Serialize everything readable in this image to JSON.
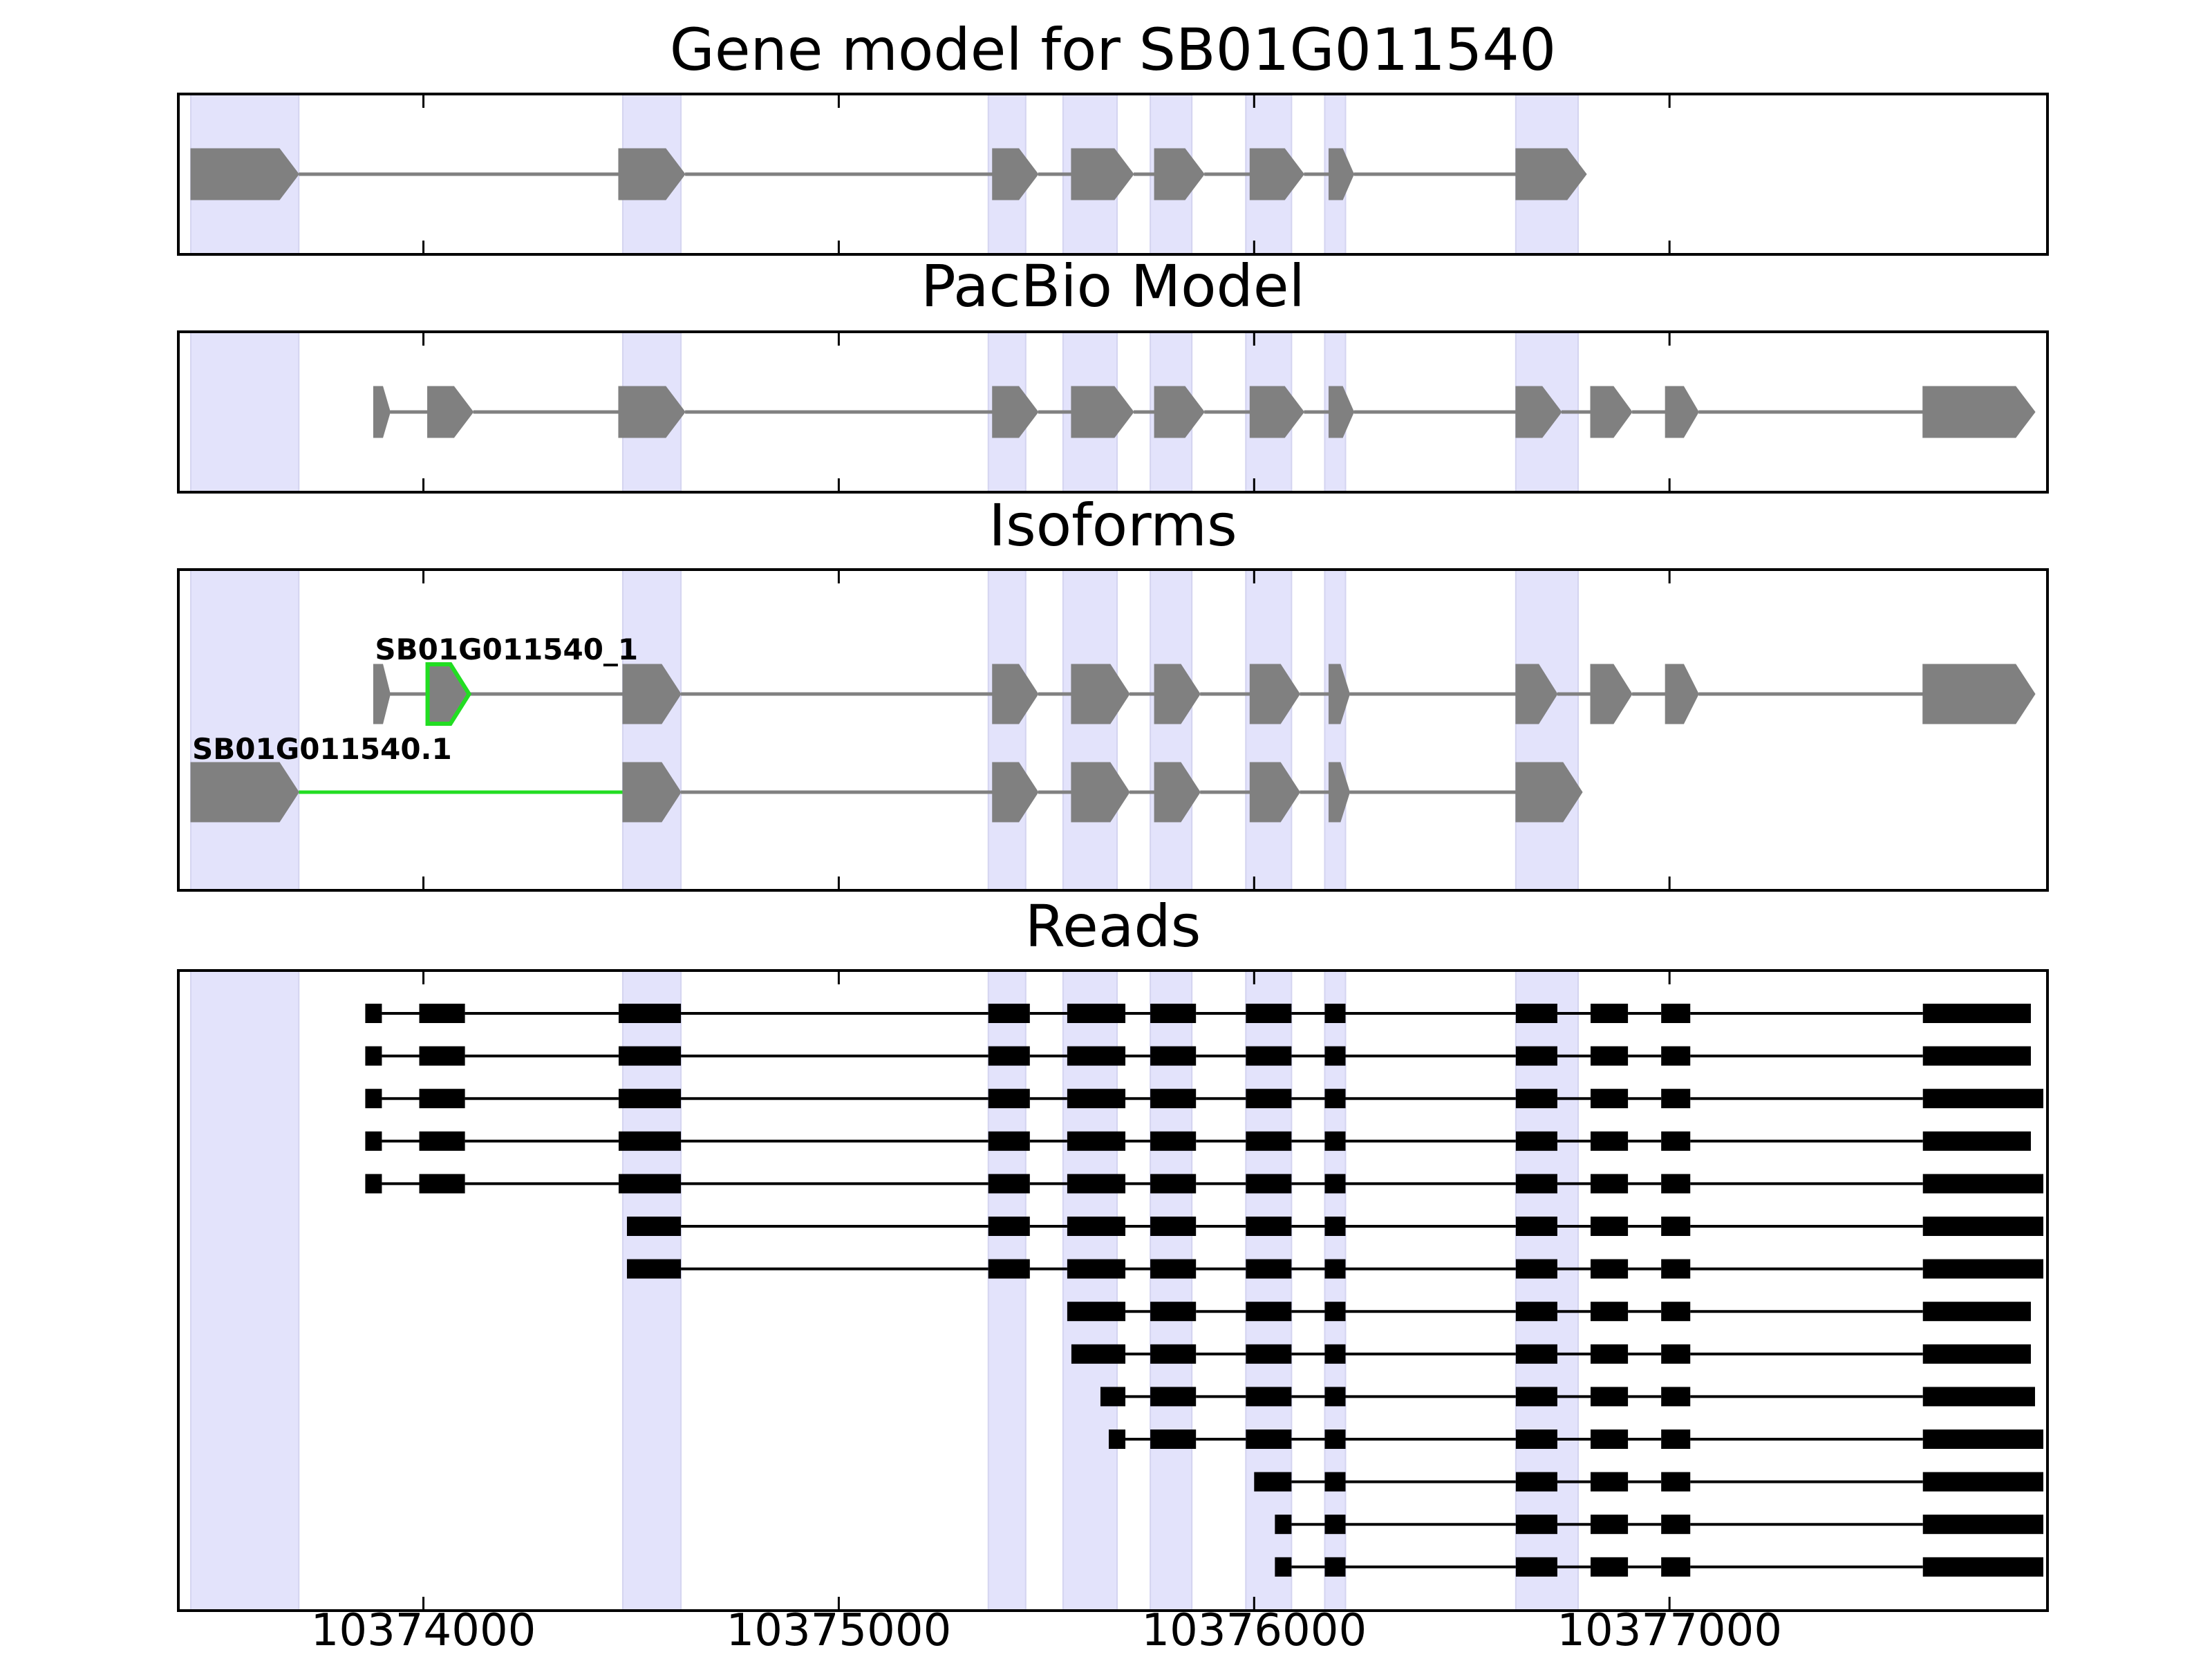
{
  "chart_data": {
    "type": "gene-structure",
    "x_axis": {
      "ticks": [
        10374000,
        10375000,
        10376000,
        10377000
      ],
      "tick_labels": [
        "10374000",
        "10375000",
        "10376000",
        "10377000"
      ]
    },
    "xlim": [
      10373410,
      10377910
    ],
    "colors": {
      "highlight": "#e3e3fb",
      "feature": "#808080",
      "intron": "#808080",
      "selected": "#22dd22",
      "read": "#000000",
      "frame": "#000000"
    },
    "highlight_regions": [
      [
        10373440,
        10373700
      ],
      [
        10374480,
        10374620
      ],
      [
        10375360,
        10375450
      ],
      [
        10375540,
        10375670
      ],
      [
        10375750,
        10375850
      ],
      [
        10375980,
        10376090
      ],
      [
        10376170,
        10376220
      ],
      [
        10376630,
        10376780
      ]
    ],
    "panels": [
      {
        "title": "Gene model for SB01G011540",
        "tracks": [
          {
            "exons": [
              [
                10373440,
                10373700
              ],
              [
                10374470,
                10374630
              ],
              [
                10375370,
                10375480
              ],
              [
                10375560,
                10375710
              ],
              [
                10375760,
                10375880
              ],
              [
                10375990,
                10376120
              ],
              [
                10376180,
                10376240
              ],
              [
                10376630,
                10376800
              ]
            ]
          }
        ]
      },
      {
        "title": "PacBio Model",
        "tracks": [
          {
            "exons": [
              [
                10373880,
                10373920
              ],
              [
                10374010,
                10374120
              ],
              [
                10374470,
                10374630
              ],
              [
                10375370,
                10375480
              ],
              [
                10375560,
                10375710
              ],
              [
                10375760,
                10375880
              ],
              [
                10375990,
                10376120
              ],
              [
                10376180,
                10376240
              ],
              [
                10376630,
                10376740
              ],
              [
                10376810,
                10376910
              ],
              [
                10376990,
                10377070
              ],
              [
                10377610,
                10377880
              ]
            ]
          }
        ]
      },
      {
        "title": "Isoforms",
        "tracks": [
          {
            "label": "SB01G011540_1",
            "exons": [
              [
                10373880,
                10373920
              ],
              [
                10374010,
                10374110
              ],
              [
                10374480,
                10374620
              ],
              [
                10375370,
                10375480
              ],
              [
                10375560,
                10375700
              ],
              [
                10375760,
                10375870
              ],
              [
                10375990,
                10376110
              ],
              [
                10376180,
                10376230
              ],
              [
                10376630,
                10376730
              ],
              [
                10376810,
                10376910
              ],
              [
                10376990,
                10377070
              ],
              [
                10377610,
                10377880
              ]
            ],
            "selected_exon": 1
          },
          {
            "label": "SB01G011540.1",
            "exons": [
              [
                10373440,
                10373700
              ],
              [
                10374480,
                10374620
              ],
              [
                10375370,
                10375480
              ],
              [
                10375560,
                10375700
              ],
              [
                10375760,
                10375870
              ],
              [
                10375990,
                10376110
              ],
              [
                10376180,
                10376230
              ],
              [
                10376630,
                10376790
              ]
            ],
            "selected_intron": 0
          }
        ]
      },
      {
        "title": "Reads",
        "tracks": [
          {
            "exons": [
              [
                10373860,
                10373900
              ],
              [
                10373990,
                10374100
              ],
              [
                10374470,
                10374620
              ],
              [
                10375360,
                10375460
              ],
              [
                10375550,
                10375690
              ],
              [
                10375750,
                10375860
              ],
              [
                10375980,
                10376090
              ],
              [
                10376170,
                10376220
              ],
              [
                10376630,
                10376730
              ],
              [
                10376810,
                10376900
              ],
              [
                10376980,
                10377050
              ],
              [
                10377610,
                10377870
              ]
            ]
          },
          {
            "exons": [
              [
                10373860,
                10373900
              ],
              [
                10373990,
                10374100
              ],
              [
                10374470,
                10374620
              ],
              [
                10375360,
                10375460
              ],
              [
                10375550,
                10375690
              ],
              [
                10375750,
                10375860
              ],
              [
                10375980,
                10376090
              ],
              [
                10376170,
                10376220
              ],
              [
                10376630,
                10376730
              ],
              [
                10376810,
                10376900
              ],
              [
                10376980,
                10377050
              ],
              [
                10377610,
                10377870
              ]
            ]
          },
          {
            "exons": [
              [
                10373860,
                10373900
              ],
              [
                10373990,
                10374100
              ],
              [
                10374470,
                10374620
              ],
              [
                10375360,
                10375460
              ],
              [
                10375550,
                10375690
              ],
              [
                10375750,
                10375860
              ],
              [
                10375980,
                10376090
              ],
              [
                10376170,
                10376220
              ],
              [
                10376630,
                10376730
              ],
              [
                10376810,
                10376900
              ],
              [
                10376980,
                10377050
              ],
              [
                10377610,
                10377900
              ]
            ]
          },
          {
            "exons": [
              [
                10373860,
                10373900
              ],
              [
                10373990,
                10374100
              ],
              [
                10374470,
                10374620
              ],
              [
                10375360,
                10375460
              ],
              [
                10375550,
                10375690
              ],
              [
                10375750,
                10375860
              ],
              [
                10375980,
                10376090
              ],
              [
                10376170,
                10376220
              ],
              [
                10376630,
                10376730
              ],
              [
                10376810,
                10376900
              ],
              [
                10376980,
                10377050
              ],
              [
                10377610,
                10377870
              ]
            ]
          },
          {
            "exons": [
              [
                10373860,
                10373900
              ],
              [
                10373990,
                10374100
              ],
              [
                10374470,
                10374620
              ],
              [
                10375360,
                10375460
              ],
              [
                10375550,
                10375690
              ],
              [
                10375750,
                10375860
              ],
              [
                10375980,
                10376090
              ],
              [
                10376170,
                10376220
              ],
              [
                10376630,
                10376730
              ],
              [
                10376810,
                10376900
              ],
              [
                10376980,
                10377050
              ],
              [
                10377610,
                10377900
              ]
            ]
          },
          {
            "exons": [
              [
                10374490,
                10374620
              ],
              [
                10375360,
                10375460
              ],
              [
                10375550,
                10375690
              ],
              [
                10375750,
                10375860
              ],
              [
                10375980,
                10376090
              ],
              [
                10376170,
                10376220
              ],
              [
                10376630,
                10376730
              ],
              [
                10376810,
                10376900
              ],
              [
                10376980,
                10377050
              ],
              [
                10377610,
                10377900
              ]
            ]
          },
          {
            "exons": [
              [
                10374490,
                10374620
              ],
              [
                10375360,
                10375460
              ],
              [
                10375550,
                10375690
              ],
              [
                10375750,
                10375860
              ],
              [
                10375980,
                10376090
              ],
              [
                10376170,
                10376220
              ],
              [
                10376630,
                10376730
              ],
              [
                10376810,
                10376900
              ],
              [
                10376980,
                10377050
              ],
              [
                10377610,
                10377900
              ]
            ]
          },
          {
            "exons": [
              [
                10375550,
                10375690
              ],
              [
                10375750,
                10375860
              ],
              [
                10375980,
                10376090
              ],
              [
                10376170,
                10376220
              ],
              [
                10376630,
                10376730
              ],
              [
                10376810,
                10376900
              ],
              [
                10376980,
                10377050
              ],
              [
                10377610,
                10377870
              ]
            ]
          },
          {
            "exons": [
              [
                10375560,
                10375690
              ],
              [
                10375750,
                10375860
              ],
              [
                10375980,
                10376090
              ],
              [
                10376170,
                10376220
              ],
              [
                10376630,
                10376730
              ],
              [
                10376810,
                10376900
              ],
              [
                10376980,
                10377050
              ],
              [
                10377610,
                10377870
              ]
            ]
          },
          {
            "exons": [
              [
                10375630,
                10375690
              ],
              [
                10375750,
                10375860
              ],
              [
                10375980,
                10376090
              ],
              [
                10376170,
                10376220
              ],
              [
                10376630,
                10376730
              ],
              [
                10376810,
                10376900
              ],
              [
                10376980,
                10377050
              ],
              [
                10377610,
                10377880
              ]
            ]
          },
          {
            "exons": [
              [
                10375650,
                10375690
              ],
              [
                10375750,
                10375860
              ],
              [
                10375980,
                10376090
              ],
              [
                10376170,
                10376220
              ],
              [
                10376630,
                10376730
              ],
              [
                10376810,
                10376900
              ],
              [
                10376980,
                10377050
              ],
              [
                10377610,
                10377900
              ]
            ]
          },
          {
            "exons": [
              [
                10376000,
                10376090
              ],
              [
                10376170,
                10376220
              ],
              [
                10376630,
                10376730
              ],
              [
                10376810,
                10376900
              ],
              [
                10376980,
                10377050
              ],
              [
                10377610,
                10377900
              ]
            ]
          },
          {
            "exons": [
              [
                10376050,
                10376090
              ],
              [
                10376170,
                10376220
              ],
              [
                10376630,
                10376730
              ],
              [
                10376810,
                10376900
              ],
              [
                10376980,
                10377050
              ],
              [
                10377610,
                10377900
              ]
            ]
          },
          {
            "exons": [
              [
                10376050,
                10376090
              ],
              [
                10376170,
                10376220
              ],
              [
                10376630,
                10376730
              ],
              [
                10376810,
                10376900
              ],
              [
                10376980,
                10377050
              ],
              [
                10377610,
                10377900
              ]
            ]
          }
        ]
      }
    ]
  }
}
